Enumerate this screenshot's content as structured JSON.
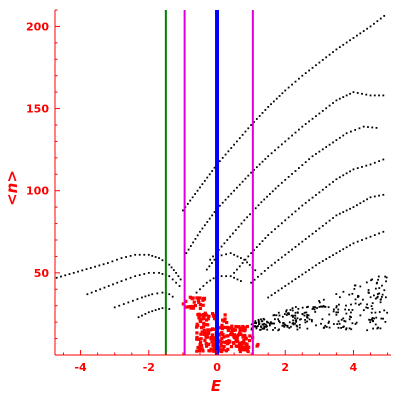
{
  "chart_data": {
    "type": "scatter",
    "title": "",
    "xlabel": "E",
    "ylabel": "<n>",
    "xlim": [
      -4.75,
      5.1
    ],
    "ylim": [
      0,
      210
    ],
    "x_ticks": [
      -4,
      -2,
      0,
      2,
      4
    ],
    "y_ticks": [
      50,
      100,
      150,
      200
    ],
    "colors": {
      "axes": "#ff0000",
      "points_black": "#000000",
      "points_red": "#ff0000",
      "line_blue": "#0000ff",
      "line_green": "#008000",
      "line_magenta": "#dd00dd"
    },
    "vertical_lines": [
      {
        "x": -1.5,
        "color": "#008000",
        "name": "green-line"
      },
      {
        "x": -0.95,
        "color": "#dd00dd",
        "name": "magenta-line-left"
      },
      {
        "x": 0.0,
        "color": "#0000ff",
        "name": "blue-line"
      },
      {
        "x": 1.05,
        "color": "#dd00dd",
        "name": "magenta-line-right"
      }
    ],
    "curves": [
      {
        "points": [
          [
            -4.7,
            47
          ],
          [
            -4.2,
            50
          ],
          [
            -3.7,
            53
          ],
          [
            -3.2,
            56
          ],
          [
            -2.8,
            59
          ],
          [
            -2.4,
            61
          ],
          [
            -2.0,
            61
          ],
          [
            -1.7,
            59
          ],
          [
            -1.4,
            55
          ],
          [
            -1.2,
            50
          ],
          [
            -1.0,
            44
          ]
        ]
      },
      {
        "points": [
          [
            -3.8,
            37
          ],
          [
            -3.3,
            41
          ],
          [
            -2.8,
            45
          ],
          [
            -2.4,
            48
          ],
          [
            -2.0,
            50
          ],
          [
            -1.7,
            50
          ],
          [
            -1.4,
            48
          ],
          [
            -1.2,
            44
          ],
          [
            -1.0,
            40
          ]
        ]
      },
      {
        "points": [
          [
            -3.0,
            29
          ],
          [
            -2.6,
            32
          ],
          [
            -2.2,
            35
          ],
          [
            -1.9,
            37
          ],
          [
            -1.6,
            38
          ],
          [
            -1.4,
            37
          ],
          [
            -1.2,
            34
          ]
        ]
      },
      {
        "points": [
          [
            -2.3,
            23
          ],
          [
            -2.0,
            26
          ],
          [
            -1.7,
            28
          ],
          [
            -1.5,
            29
          ],
          [
            -1.3,
            27
          ]
        ]
      },
      {
        "points": [
          [
            -1.0,
            88
          ],
          [
            -0.5,
            102
          ],
          [
            0.0,
            116
          ],
          [
            0.5,
            128
          ],
          [
            1.0,
            140
          ],
          [
            1.5,
            151
          ],
          [
            2.0,
            161
          ],
          [
            2.5,
            170
          ],
          [
            3.0,
            178
          ],
          [
            3.5,
            186
          ],
          [
            4.0,
            193
          ],
          [
            4.5,
            200
          ],
          [
            5.0,
            208
          ]
        ]
      },
      {
        "points": [
          [
            -0.9,
            62
          ],
          [
            -0.5,
            75
          ],
          [
            0.0,
            89
          ],
          [
            0.5,
            100
          ],
          [
            1.0,
            111
          ],
          [
            1.5,
            121
          ],
          [
            2.0,
            130
          ],
          [
            2.5,
            139
          ],
          [
            3.0,
            147
          ],
          [
            3.5,
            155
          ],
          [
            4.0,
            160
          ],
          [
            4.5,
            158
          ],
          [
            5.0,
            158
          ]
        ]
      },
      {
        "points": [
          [
            -0.2,
            58
          ],
          [
            0.3,
            70
          ],
          [
            0.8,
            82
          ],
          [
            1.3,
            93
          ],
          [
            1.8,
            103
          ],
          [
            2.3,
            112
          ],
          [
            2.8,
            121
          ],
          [
            3.3,
            128
          ],
          [
            3.8,
            135
          ],
          [
            4.3,
            139
          ],
          [
            4.8,
            138
          ]
        ]
      },
      {
        "points": [
          [
            0.5,
            50
          ],
          [
            1.0,
            62
          ],
          [
            1.5,
            73
          ],
          [
            2.0,
            82
          ],
          [
            2.5,
            91
          ],
          [
            3.0,
            99
          ],
          [
            3.5,
            107
          ],
          [
            4.0,
            113
          ],
          [
            4.5,
            116
          ],
          [
            5.0,
            120
          ]
        ]
      },
      {
        "points": [
          [
            1.0,
            44
          ],
          [
            1.5,
            53
          ],
          [
            2.0,
            61
          ],
          [
            2.5,
            69
          ],
          [
            3.0,
            77
          ],
          [
            3.5,
            85
          ],
          [
            4.0,
            90
          ],
          [
            4.5,
            96
          ],
          [
            5.0,
            98
          ]
        ]
      },
      {
        "points": [
          [
            1.5,
            35
          ],
          [
            2.0,
            42
          ],
          [
            2.5,
            49
          ],
          [
            3.0,
            56
          ],
          [
            3.5,
            62
          ],
          [
            4.0,
            68
          ],
          [
            4.5,
            72
          ],
          [
            5.0,
            76
          ]
        ]
      },
      {
        "points": [
          [
            -0.3,
            52
          ],
          [
            0.0,
            60
          ],
          [
            0.4,
            62
          ],
          [
            0.8,
            58
          ],
          [
            1.2,
            50
          ]
        ]
      },
      {
        "points": [
          [
            -0.6,
            38
          ],
          [
            -0.3,
            44
          ],
          [
            0.0,
            48
          ],
          [
            0.4,
            48
          ],
          [
            0.8,
            44
          ]
        ]
      }
    ],
    "scatter_black": {
      "x_range": [
        1.0,
        5.0
      ],
      "y_range": [
        15,
        45
      ],
      "count": 280
    },
    "scatter_red": {
      "x_range": [
        -1.0,
        1.3
      ],
      "y_range": [
        2,
        42
      ],
      "count": 260
    }
  }
}
